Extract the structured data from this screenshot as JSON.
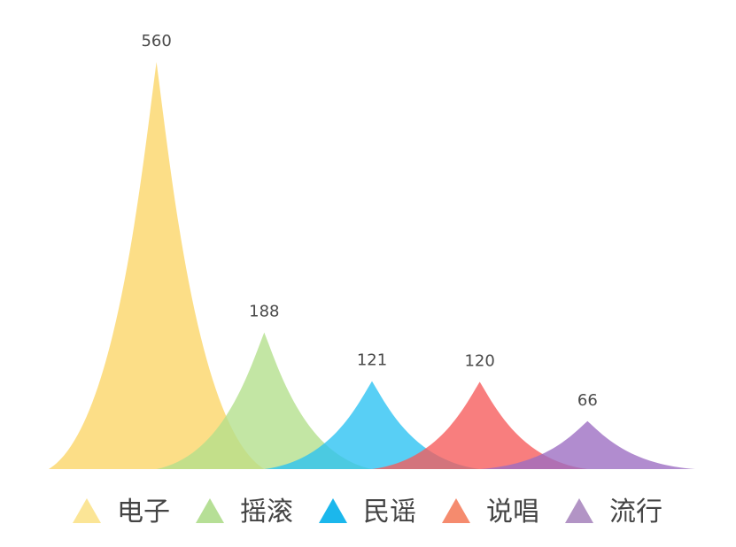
{
  "chart_data": {
    "type": "area",
    "title": "",
    "xlabel": "",
    "ylabel": "",
    "ylim": [
      0,
      560
    ],
    "grid": false,
    "legend_position": "bottom",
    "categories": [
      "电子",
      "摇滚",
      "民谣",
      "说唱",
      "流行"
    ],
    "values": [
      560,
      188,
      121,
      120,
      66
    ],
    "data_labels": [
      "560",
      "188",
      "121",
      "120",
      "66"
    ],
    "series": [
      {
        "name": "电子",
        "value": 560,
        "color": "#FBD565"
      },
      {
        "name": "摇滚",
        "value": 188,
        "color": "#B2DF8A"
      },
      {
        "name": "民谣",
        "value": 121,
        "color": "#29C1F2"
      },
      {
        "name": "说唱",
        "value": 120,
        "color": "#F65A5A"
      },
      {
        "name": "流行",
        "value": 66,
        "color": "#9B6BC2"
      }
    ],
    "legend": [
      {
        "label": "电子",
        "icon": "triangle-icon",
        "color": "#FBE596"
      },
      {
        "label": "摇滚",
        "icon": "triangle-icon",
        "color": "#B6DF96"
      },
      {
        "label": "民谣",
        "icon": "triangle-icon",
        "color": "#1BB7EC"
      },
      {
        "label": "说唱",
        "icon": "triangle-icon",
        "color": "#F58B6E"
      },
      {
        "label": "流行",
        "icon": "triangle-icon",
        "color": "#B294C5"
      }
    ]
  }
}
